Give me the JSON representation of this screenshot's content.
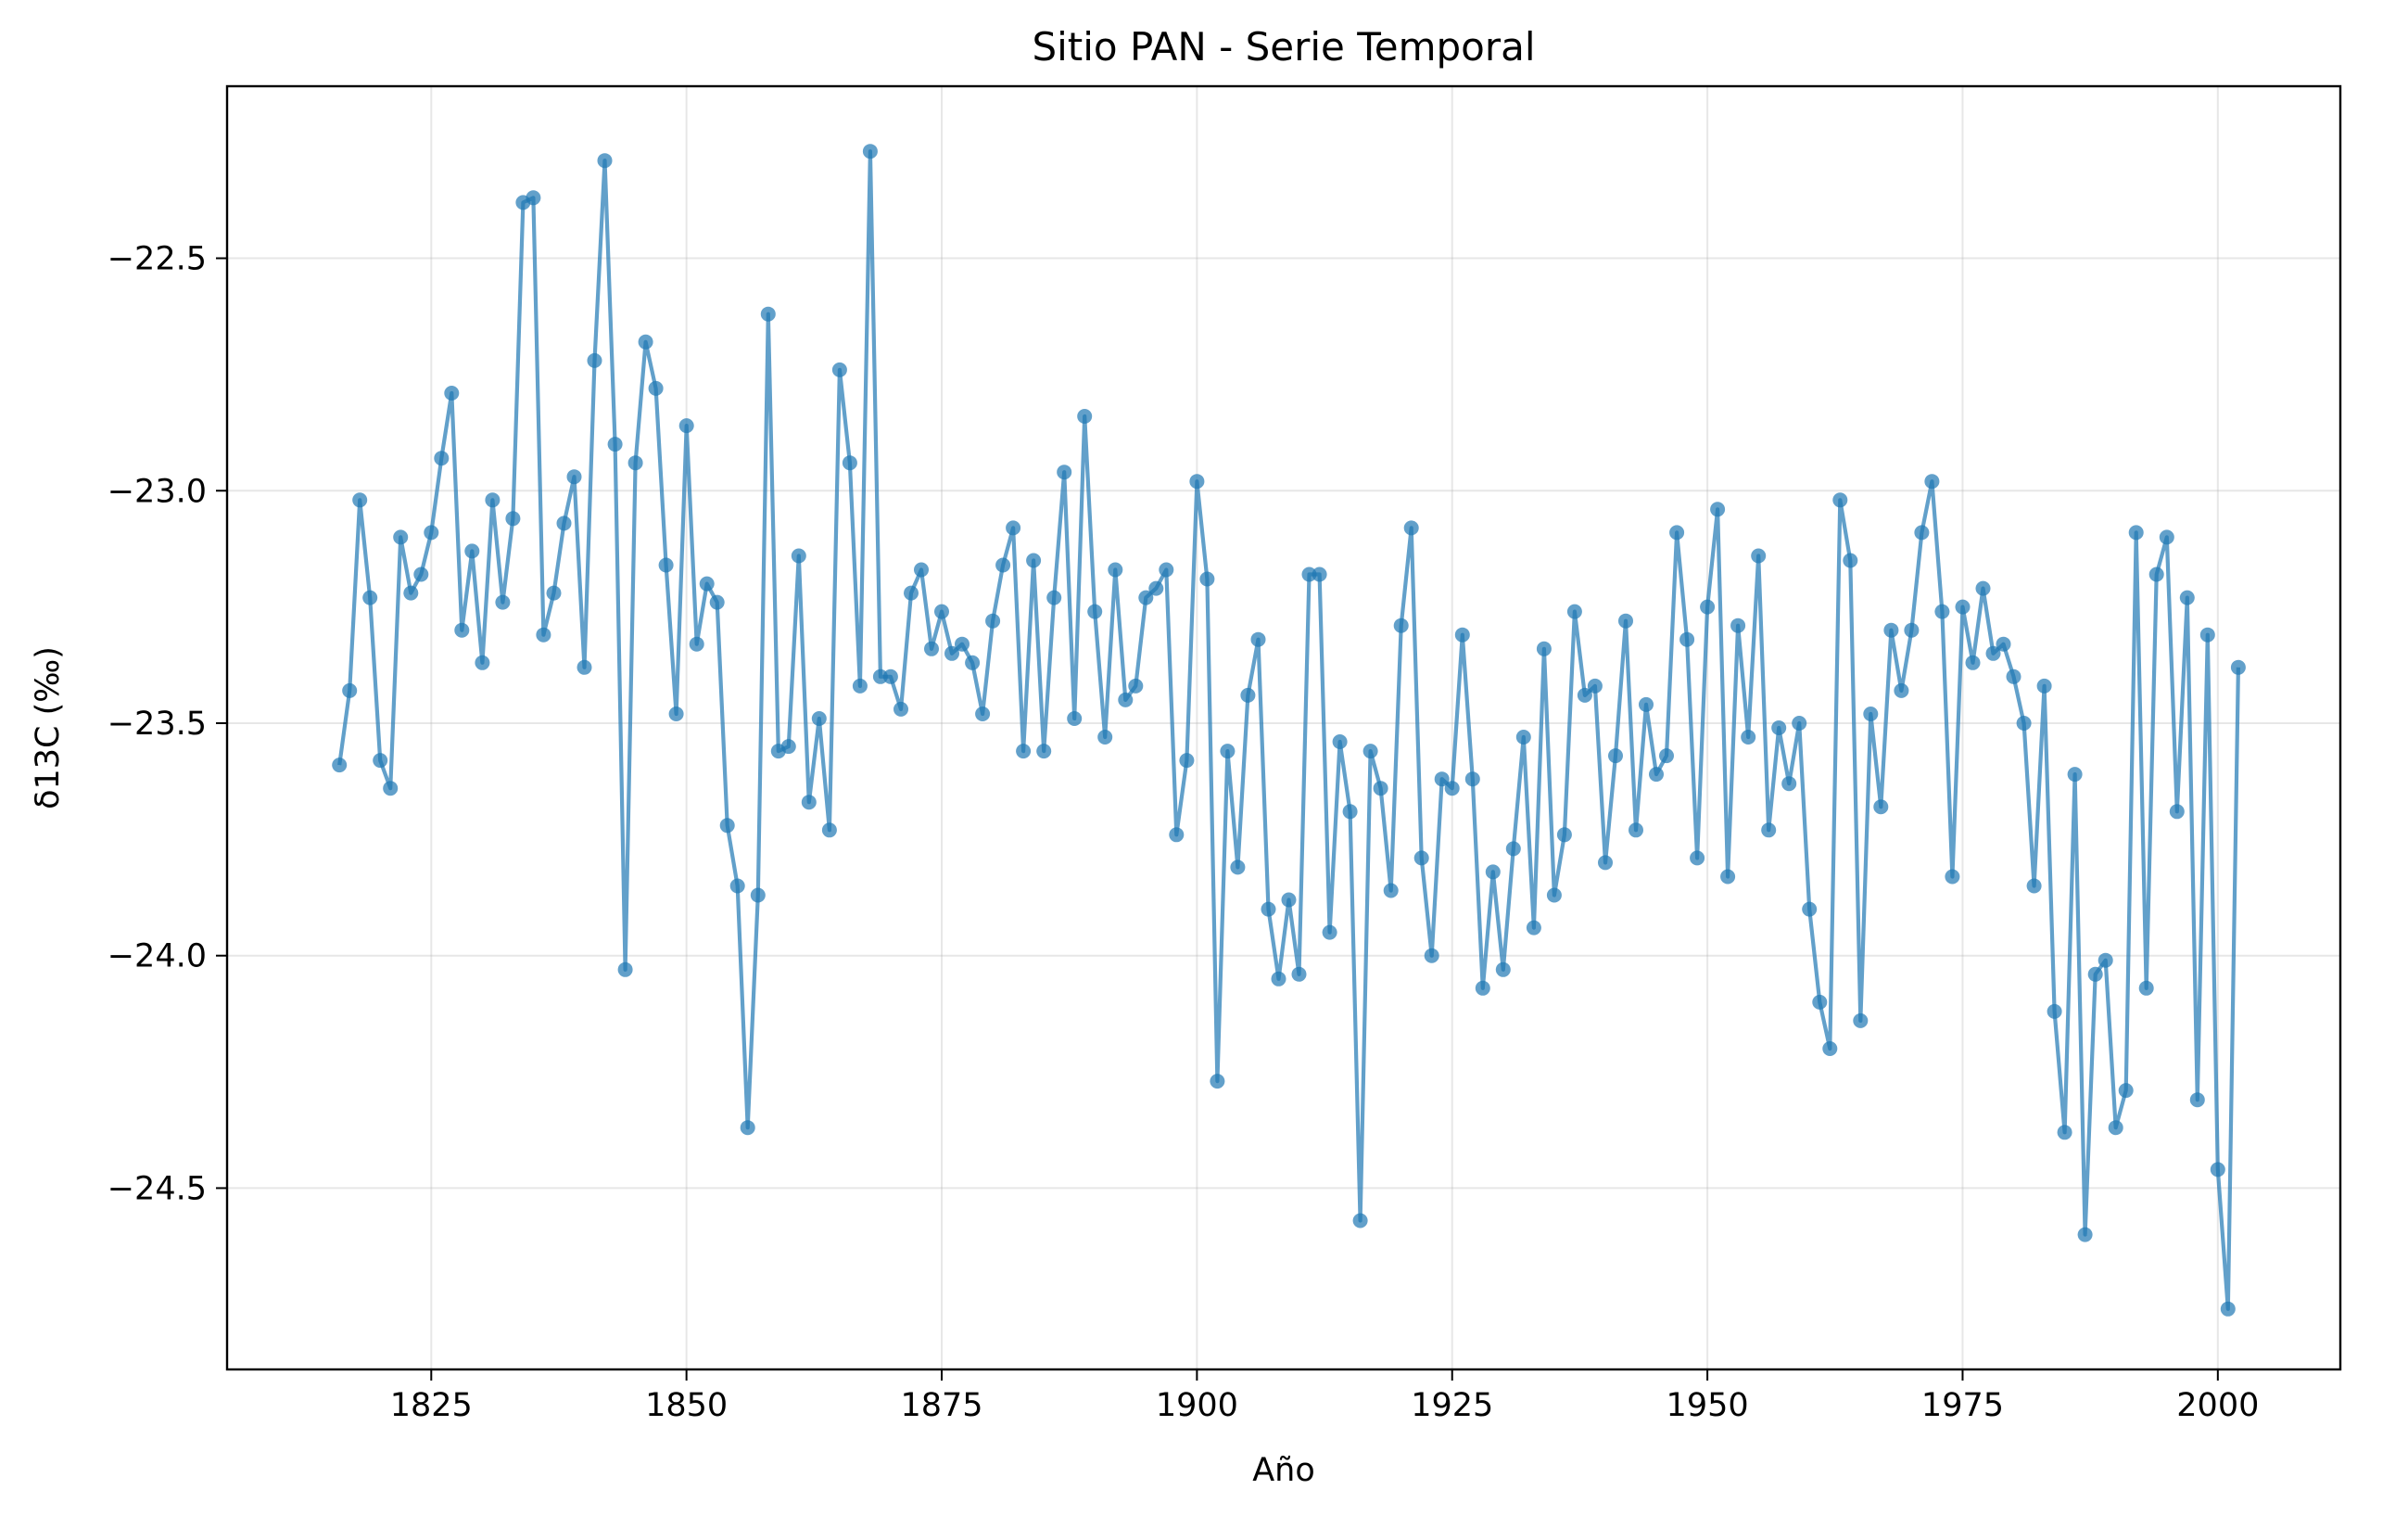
{
  "chart_data": {
    "type": "line",
    "title": "Sitio PAN  - Serie Temporal",
    "xlabel": "Año",
    "ylabel": "δ13C (‰)",
    "xlim": [
      1805,
      2012
    ],
    "ylim": [
      -24.89,
      -22.13
    ],
    "grid": true,
    "color": "#1f77b4",
    "x_ticks": [
      1825,
      1850,
      1875,
      1900,
      1925,
      1950,
      1975,
      2000
    ],
    "x_tick_labels": [
      "1825",
      "1850",
      "1875",
      "1900",
      "1925",
      "1950",
      "1975",
      "2000"
    ],
    "y_ticks": [
      -22.5,
      -23.0,
      -23.5,
      -24.0,
      -24.5
    ],
    "y_tick_labels": [
      "−22.5",
      "−23.0",
      "−23.5",
      "−24.0",
      "−24.5"
    ],
    "series": [
      {
        "x": [
          1816,
          1817,
          1818,
          1819,
          1820,
          1821,
          1822,
          1823,
          1824,
          1825,
          1826,
          1827,
          1828,
          1829,
          1830,
          1831,
          1832,
          1833,
          1834,
          1835,
          1836,
          1837,
          1838,
          1839,
          1840,
          1841,
          1842,
          1843,
          1844,
          1845,
          1846,
          1847,
          1848,
          1849,
          1850,
          1851,
          1852,
          1853,
          1854,
          1855,
          1856,
          1857,
          1858,
          1859,
          1860,
          1861,
          1862,
          1863,
          1864,
          1865,
          1866,
          1867,
          1868,
          1869,
          1870,
          1871,
          1872,
          1873,
          1874,
          1875,
          1876,
          1877,
          1878,
          1879,
          1880,
          1881,
          1882,
          1883,
          1884,
          1885,
          1886,
          1887,
          1888,
          1889,
          1890,
          1891,
          1892,
          1893,
          1894,
          1895,
          1896,
          1897,
          1898,
          1899,
          1900,
          1901,
          1902,
          1903,
          1904,
          1905,
          1906,
          1907,
          1908,
          1909,
          1910,
          1911,
          1912,
          1913,
          1914,
          1915,
          1916,
          1917,
          1918,
          1919,
          1920,
          1921,
          1922,
          1923,
          1924,
          1925,
          1926,
          1927,
          1928,
          1929,
          1930,
          1931,
          1932,
          1933,
          1934,
          1935,
          1936,
          1937,
          1938,
          1939,
          1940,
          1941,
          1942,
          1943,
          1944,
          1945,
          1946,
          1947,
          1948,
          1949,
          1950,
          1951,
          1952,
          1953,
          1954,
          1955,
          1956,
          1957,
          1958,
          1959,
          1960,
          1961,
          1962,
          1963,
          1964,
          1965,
          1966,
          1967,
          1968,
          1969,
          1970,
          1971,
          1972,
          1973,
          1974,
          1975,
          1976,
          1977,
          1978,
          1979,
          1980,
          1981,
          1982,
          1983,
          1984,
          1985,
          1986,
          1987,
          1988,
          1989,
          1990,
          1991,
          1992,
          1993,
          1994,
          1995,
          1996,
          1997,
          1998,
          1999,
          2000,
          2001,
          2002
        ],
        "values": [
          -23.59,
          -23.43,
          -23.02,
          -23.23,
          -23.58,
          -23.64,
          -23.1,
          -23.22,
          -23.18,
          -23.09,
          -22.93,
          -22.79,
          -23.3,
          -23.13,
          -23.37,
          -23.02,
          -23.24,
          -23.06,
          -22.38,
          -22.37,
          -23.31,
          -23.22,
          -23.07,
          -22.97,
          -23.38,
          -22.72,
          -22.29,
          -22.9,
          -24.03,
          -22.94,
          -22.68,
          -22.78,
          -23.16,
          -23.48,
          -22.86,
          -23.33,
          -23.2,
          -23.24,
          -23.72,
          -23.85,
          -24.37,
          -23.87,
          -22.62,
          -23.56,
          -23.55,
          -23.14,
          -23.67,
          -23.49,
          -23.73,
          -22.74,
          -22.94,
          -23.42,
          -22.27,
          -23.4,
          -23.4,
          -23.47,
          -23.22,
          -23.17,
          -23.34,
          -23.26,
          -23.35,
          -23.33,
          -23.37,
          -23.48,
          -23.28,
          -23.16,
          -23.08,
          -23.56,
          -23.15,
          -23.56,
          -23.23,
          -22.96,
          -23.49,
          -22.84,
          -23.26,
          -23.53,
          -23.17,
          -23.45,
          -23.42,
          -23.23,
          -23.21,
          -23.17,
          -23.74,
          -23.58,
          -22.98,
          -23.19,
          -24.27,
          -23.56,
          -23.81,
          -23.44,
          -23.32,
          -23.9,
          -24.05,
          -23.88,
          -24.04,
          -23.18,
          -23.18,
          -23.95,
          -23.54,
          -23.69,
          -24.57,
          -23.56,
          -23.64,
          -23.86,
          -23.29,
          -23.08,
          -23.79,
          -24.0,
          -23.62,
          -23.64,
          -23.31,
          -23.62,
          -24.07,
          -23.82,
          -24.03,
          -23.77,
          -23.53,
          -23.94,
          -23.34,
          -23.87,
          -23.74,
          -23.26,
          -23.44,
          -23.42,
          -23.8,
          -23.57,
          -23.28,
          -23.73,
          -23.46,
          -23.61,
          -23.57,
          -23.09,
          -23.32,
          -23.79,
          -23.25,
          -23.04,
          -23.83,
          -23.29,
          -23.53,
          -23.14,
          -23.73,
          -23.51,
          -23.63,
          -23.5,
          -23.9,
          -24.1,
          -24.2,
          -23.02,
          -23.15,
          -24.14,
          -23.48,
          -23.68,
          -23.3,
          -23.43,
          -23.3,
          -23.09,
          -22.98,
          -23.26,
          -23.83,
          -23.25,
          -23.37,
          -23.21,
          -23.35,
          -23.33,
          -23.4,
          -23.5,
          -23.85,
          -23.42,
          -24.12,
          -24.38,
          -23.61,
          -24.6,
          -24.04,
          -24.01,
          -24.37,
          -24.29,
          -23.09,
          -24.07,
          -23.18,
          -23.1,
          -23.69,
          -23.23,
          -24.31,
          -23.31,
          -24.46,
          -24.76,
          -23.38
        ]
      }
    ]
  }
}
